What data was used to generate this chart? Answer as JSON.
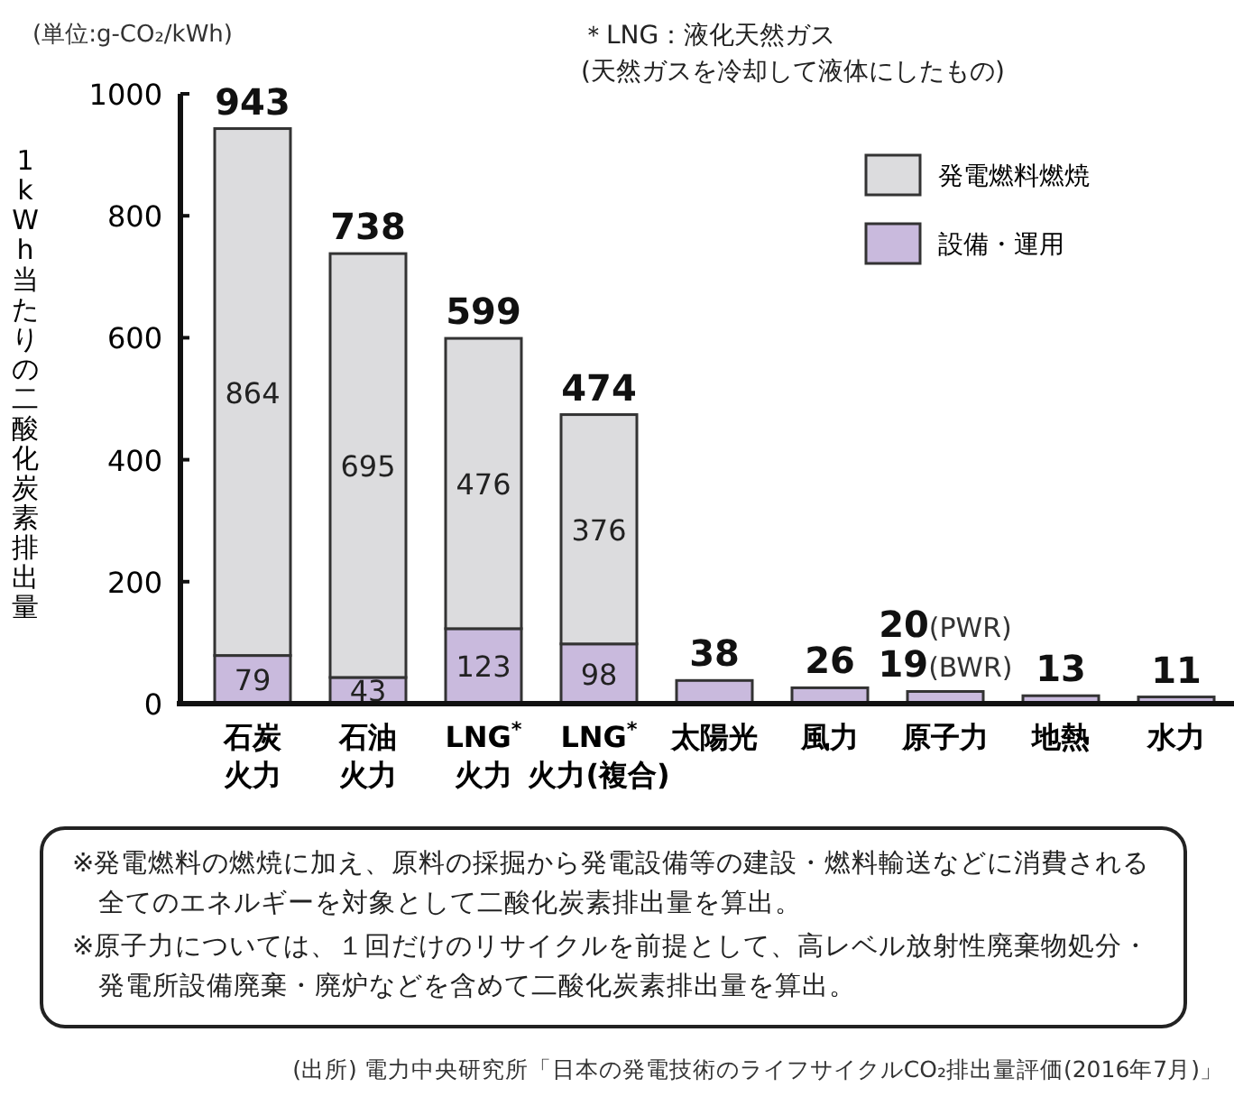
{
  "chart_data": {
    "type": "bar",
    "stacked": true,
    "ylabel": "1kWh当たりの二酸化炭素排出量",
    "categories": [
      "石炭火力",
      "石油火力",
      "LNG$^{*}$火力",
      "LNG$^{*}$火力(複合)",
      "太陽光",
      "風力",
      "原子力",
      "地熱",
      "水力"
    ],
    "series": [
      {
        "name": "設備・運用",
        "color": "#c9badd",
        "values": [
          79,
          43,
          123,
          98,
          38,
          26,
          20,
          13,
          11
        ],
        "value_labels": [
          "79",
          "43",
          "123",
          "98",
          null,
          null,
          null,
          null,
          null
        ]
      },
      {
        "name": "発電燃料燃焼",
        "color": "#dcdcde",
        "values": [
          864,
          695,
          476,
          376,
          null,
          null,
          null,
          null,
          null
        ],
        "value_labels": [
          "864",
          "695",
          "476",
          "376",
          null,
          null,
          null,
          null,
          null
        ]
      }
    ],
    "totals": [
      "943",
      "738",
      "599",
      "474",
      "38",
      "26",
      "20(PWR)\n19(BWR)",
      "13",
      "11"
    ],
    "ylim": [
      0,
      1000
    ],
    "yticks": [
      0,
      200,
      400,
      600,
      800,
      1000
    ],
    "grid": false,
    "legend": "top right",
    "annotations": [
      "(単位:g-CO₂/kWh)",
      "＊LNG：液化天然ガス\n(天然ガスを冷却して液体にしたもの)",
      "※発電燃料の燃焼に加え、原料の採掘から発電設備等の建設・燃料輸送などに消費される全てのエネルギーを対象として二酸化炭素排出量を算出。",
      "※原子力については、１回だけのリサイクルを前提として、高レベル放射性廃棄物処分・発電所設備廃棄・廃炉などを含めて二酸化炭素排出量を算出。",
      "(出所) 電力中央研究所「日本の発電技術のライフサイクルCO₂排出量評価(2016年7月)」"
    ]
  }
}
